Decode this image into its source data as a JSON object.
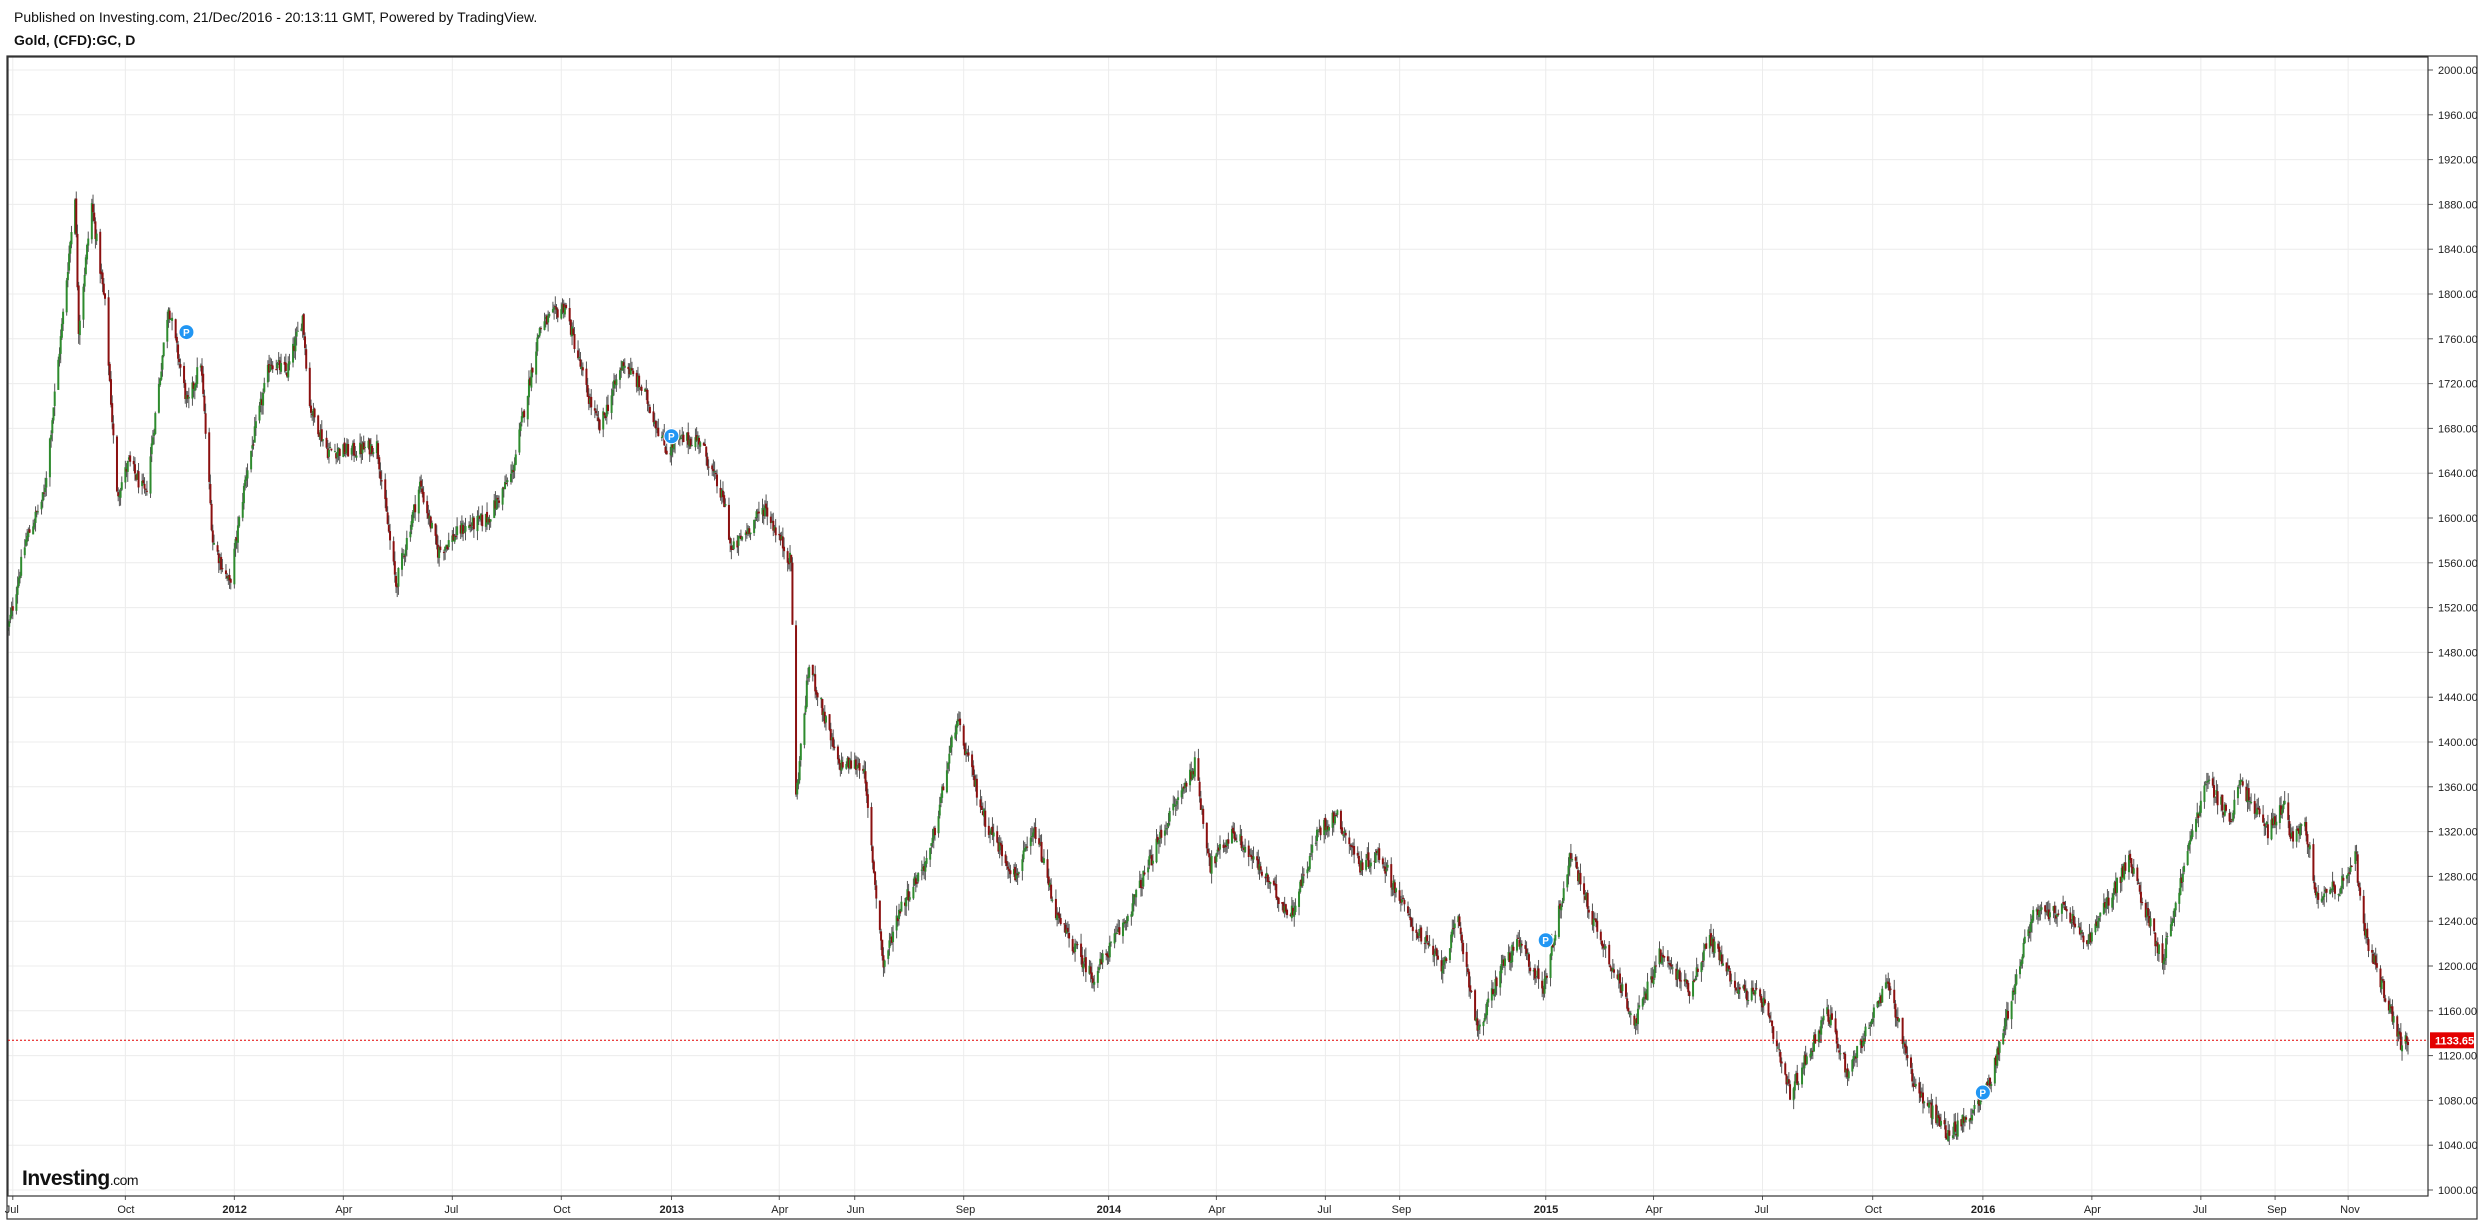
{
  "header": {
    "published": "Published on Investing.com, 21/Dec/2016 - 20:13:11 GMT, Powered by TradingView.",
    "symbol": "Gold, (CFD):GC, D"
  },
  "logo": {
    "brand": "Investing",
    "suffix": ".com"
  },
  "colors": {
    "up": "#2e8b2e",
    "down": "#8b1010",
    "price_line": "#e30000",
    "grid": "#ececec",
    "marker": "#2196f3"
  },
  "chart_data": {
    "type": "candlestick",
    "title": "Gold, (CFD):GC, D",
    "ylim": [
      990,
      2010
    ],
    "y_ticks": [
      "2000.00",
      "1960.00",
      "1920.00",
      "1880.00",
      "1840.00",
      "1800.00",
      "1760.00",
      "1720.00",
      "1680.00",
      "1640.00",
      "1600.00",
      "1560.00",
      "1520.00",
      "1480.00",
      "1440.00",
      "1400.00",
      "1360.00",
      "1320.00",
      "1280.00",
      "1240.00",
      "1200.00",
      "1160.00",
      "1120.00",
      "1080.00",
      "1040.00",
      "1000.00"
    ],
    "x_ticks": [
      {
        "label": "Jul",
        "date": "2011-07-01",
        "bold": false
      },
      {
        "label": "Oct",
        "date": "2011-10-03",
        "bold": false
      },
      {
        "label": "2012",
        "date": "2012-01-02",
        "bold": true
      },
      {
        "label": "Apr",
        "date": "2012-04-02",
        "bold": false
      },
      {
        "label": "Jul",
        "date": "2012-07-02",
        "bold": false
      },
      {
        "label": "Oct",
        "date": "2012-10-01",
        "bold": false
      },
      {
        "label": "2013",
        "date": "2013-01-01",
        "bold": true
      },
      {
        "label": "Apr",
        "date": "2013-04-01",
        "bold": false
      },
      {
        "label": "Jun",
        "date": "2013-06-03",
        "bold": false
      },
      {
        "label": "Sep",
        "date": "2013-09-02",
        "bold": false
      },
      {
        "label": "2014",
        "date": "2014-01-01",
        "bold": true
      },
      {
        "label": "Apr",
        "date": "2014-04-01",
        "bold": false
      },
      {
        "label": "Jul",
        "date": "2014-07-01",
        "bold": false
      },
      {
        "label": "Sep",
        "date": "2014-09-01",
        "bold": false
      },
      {
        "label": "2015",
        "date": "2015-01-01",
        "bold": true
      },
      {
        "label": "Apr",
        "date": "2015-04-01",
        "bold": false
      },
      {
        "label": "Jul",
        "date": "2015-07-01",
        "bold": false
      },
      {
        "label": "Oct",
        "date": "2015-10-01",
        "bold": false
      },
      {
        "label": "2016",
        "date": "2016-01-01",
        "bold": true
      },
      {
        "label": "Apr",
        "date": "2016-04-01",
        "bold": false
      },
      {
        "label": "Jul",
        "date": "2016-07-01",
        "bold": false
      },
      {
        "label": "Sep",
        "date": "2016-09-01",
        "bold": false
      },
      {
        "label": "Nov",
        "date": "2016-11-01",
        "bold": false
      }
    ],
    "close_path": [
      {
        "date": "2011-06-27",
        "close": 1500
      },
      {
        "date": "2011-07-12",
        "close": 1580
      },
      {
        "date": "2011-07-27",
        "close": 1620
      },
      {
        "date": "2011-08-10",
        "close": 1760
      },
      {
        "date": "2011-08-22",
        "close": 1890
      },
      {
        "date": "2011-08-25",
        "close": 1770
      },
      {
        "date": "2011-09-05",
        "close": 1880
      },
      {
        "date": "2011-09-16",
        "close": 1790
      },
      {
        "date": "2011-09-26",
        "close": 1620
      },
      {
        "date": "2011-10-06",
        "close": 1650
      },
      {
        "date": "2011-10-20",
        "close": 1620
      },
      {
        "date": "2011-11-08",
        "close": 1790
      },
      {
        "date": "2011-11-24",
        "close": 1700
      },
      {
        "date": "2011-12-05",
        "close": 1740
      },
      {
        "date": "2011-12-15",
        "close": 1580
      },
      {
        "date": "2011-12-29",
        "close": 1540
      },
      {
        "date": "2012-01-12",
        "close": 1640
      },
      {
        "date": "2012-02-01",
        "close": 1740
      },
      {
        "date": "2012-02-15",
        "close": 1730
      },
      {
        "date": "2012-02-28",
        "close": 1780
      },
      {
        "date": "2012-03-05",
        "close": 1700
      },
      {
        "date": "2012-03-20",
        "close": 1660
      },
      {
        "date": "2012-04-12",
        "close": 1660
      },
      {
        "date": "2012-04-30",
        "close": 1665
      },
      {
        "date": "2012-05-16",
        "close": 1540
      },
      {
        "date": "2012-06-05",
        "close": 1630
      },
      {
        "date": "2012-06-20",
        "close": 1570
      },
      {
        "date": "2012-07-10",
        "close": 1590
      },
      {
        "date": "2012-08-01",
        "close": 1600
      },
      {
        "date": "2012-08-21",
        "close": 1640
      },
      {
        "date": "2012-09-13",
        "close": 1770
      },
      {
        "date": "2012-10-04",
        "close": 1790
      },
      {
        "date": "2012-10-23",
        "close": 1710
      },
      {
        "date": "2012-11-02",
        "close": 1680
      },
      {
        "date": "2012-11-22",
        "close": 1740
      },
      {
        "date": "2012-12-10",
        "close": 1710
      },
      {
        "date": "2012-12-28",
        "close": 1660
      },
      {
        "date": "2013-01-10",
        "close": 1670
      },
      {
        "date": "2013-01-25",
        "close": 1670
      },
      {
        "date": "2013-02-15",
        "close": 1610
      },
      {
        "date": "2013-02-20",
        "close": 1570
      },
      {
        "date": "2013-03-20",
        "close": 1610
      },
      {
        "date": "2013-04-11",
        "close": 1560
      },
      {
        "date": "2013-04-15",
        "close": 1350
      },
      {
        "date": "2013-04-26",
        "close": 1470
      },
      {
        "date": "2013-05-20",
        "close": 1380
      },
      {
        "date": "2013-06-10",
        "close": 1380
      },
      {
        "date": "2013-06-27",
        "close": 1200
      },
      {
        "date": "2013-07-10",
        "close": 1250
      },
      {
        "date": "2013-08-05",
        "close": 1300
      },
      {
        "date": "2013-08-27",
        "close": 1420
      },
      {
        "date": "2013-09-20",
        "close": 1330
      },
      {
        "date": "2013-10-15",
        "close": 1280
      },
      {
        "date": "2013-11-01",
        "close": 1320
      },
      {
        "date": "2013-11-20",
        "close": 1240
      },
      {
        "date": "2013-12-19",
        "close": 1190
      },
      {
        "date": "2014-01-15",
        "close": 1240
      },
      {
        "date": "2014-02-15",
        "close": 1320
      },
      {
        "date": "2014-03-14",
        "close": 1380
      },
      {
        "date": "2014-03-27",
        "close": 1290
      },
      {
        "date": "2014-04-15",
        "close": 1320
      },
      {
        "date": "2014-05-05",
        "close": 1290
      },
      {
        "date": "2014-06-02",
        "close": 1245
      },
      {
        "date": "2014-06-25",
        "close": 1320
      },
      {
        "date": "2014-07-10",
        "close": 1335
      },
      {
        "date": "2014-07-30",
        "close": 1290
      },
      {
        "date": "2014-08-15",
        "close": 1300
      },
      {
        "date": "2014-09-10",
        "close": 1240
      },
      {
        "date": "2014-10-06",
        "close": 1200
      },
      {
        "date": "2014-10-20",
        "close": 1240
      },
      {
        "date": "2014-11-06",
        "close": 1140
      },
      {
        "date": "2014-11-25",
        "close": 1200
      },
      {
        "date": "2014-12-10",
        "close": 1220
      },
      {
        "date": "2014-12-30",
        "close": 1180
      },
      {
        "date": "2015-01-22",
        "close": 1300
      },
      {
        "date": "2015-02-10",
        "close": 1240
      },
      {
        "date": "2015-03-17",
        "close": 1150
      },
      {
        "date": "2015-04-06",
        "close": 1210
      },
      {
        "date": "2015-05-01",
        "close": 1180
      },
      {
        "date": "2015-05-18",
        "close": 1225
      },
      {
        "date": "2015-06-10",
        "close": 1180
      },
      {
        "date": "2015-07-01",
        "close": 1170
      },
      {
        "date": "2015-07-24",
        "close": 1085
      },
      {
        "date": "2015-08-24",
        "close": 1160
      },
      {
        "date": "2015-09-10",
        "close": 1105
      },
      {
        "date": "2015-10-14",
        "close": 1185
      },
      {
        "date": "2015-11-06",
        "close": 1090
      },
      {
        "date": "2015-12-03",
        "close": 1050
      },
      {
        "date": "2015-12-20",
        "close": 1065
      },
      {
        "date": "2016-01-08",
        "close": 1100
      },
      {
        "date": "2016-02-11",
        "close": 1245
      },
      {
        "date": "2016-03-10",
        "close": 1250
      },
      {
        "date": "2016-03-28",
        "close": 1220
      },
      {
        "date": "2016-05-02",
        "close": 1295
      },
      {
        "date": "2016-05-30",
        "close": 1205
      },
      {
        "date": "2016-06-24",
        "close": 1320
      },
      {
        "date": "2016-07-06",
        "close": 1365
      },
      {
        "date": "2016-07-27",
        "close": 1330
      },
      {
        "date": "2016-08-02",
        "close": 1365
      },
      {
        "date": "2016-08-26",
        "close": 1320
      },
      {
        "date": "2016-09-08",
        "close": 1345
      },
      {
        "date": "2016-09-15",
        "close": 1315
      },
      {
        "date": "2016-09-26",
        "close": 1330
      },
      {
        "date": "2016-10-05",
        "close": 1265
      },
      {
        "date": "2016-10-25",
        "close": 1270
      },
      {
        "date": "2016-11-08",
        "close": 1300
      },
      {
        "date": "2016-11-09",
        "close": 1270
      },
      {
        "date": "2016-11-15",
        "close": 1230
      },
      {
        "date": "2016-12-02",
        "close": 1175
      },
      {
        "date": "2016-12-15",
        "close": 1130
      },
      {
        "date": "2016-12-21",
        "close": 1133.65
      }
    ],
    "last_price": "1133.65",
    "markers": [
      {
        "date": "2011-11-23",
        "price": 1766,
        "label": "P"
      },
      {
        "date": "2013-01-01",
        "price": 1673,
        "label": "P"
      },
      {
        "date": "2015-01-01",
        "price": 1223,
        "label": "P"
      },
      {
        "date": "2016-01-01",
        "price": 1087,
        "label": "P"
      }
    ]
  }
}
